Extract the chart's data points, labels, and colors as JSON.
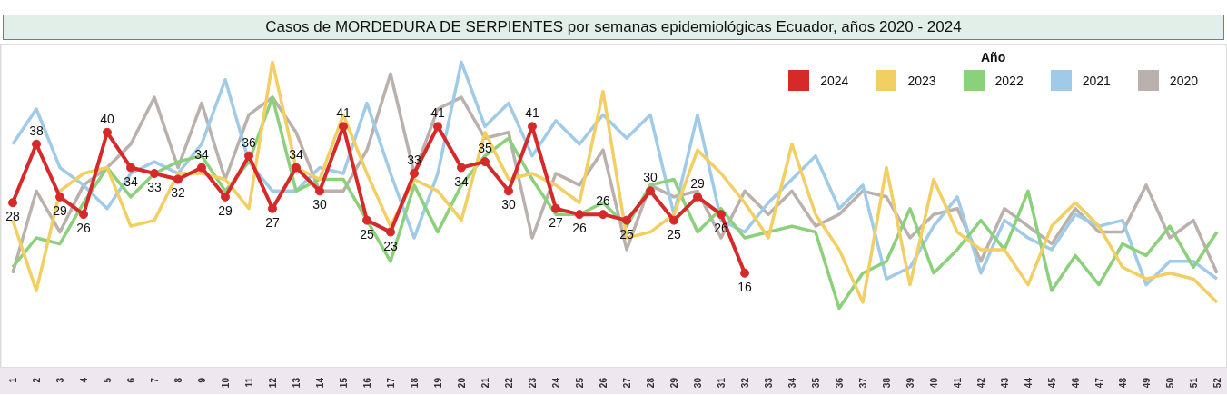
{
  "chart_data": {
    "type": "line",
    "title": "Casos de MORDEDURA DE SERPIENTES por semanas epidemiológicas Ecuador, años 2020 - 2024",
    "categories": [
      "1",
      "2",
      "3",
      "4",
      "5",
      "6",
      "7",
      "8",
      "9",
      "10",
      "11",
      "12",
      "13",
      "14",
      "15",
      "16",
      "17",
      "18",
      "19",
      "20",
      "21",
      "22",
      "23",
      "24",
      "25",
      "26",
      "27",
      "28",
      "29",
      "30",
      "31",
      "32",
      "33",
      "34",
      "35",
      "36",
      "37",
      "38",
      "39",
      "40",
      "41",
      "42",
      "43",
      "44",
      "45",
      "46",
      "47",
      "48",
      "49",
      "50",
      "51",
      "52"
    ],
    "series": [
      {
        "name": "2024",
        "color": "#d62a2a",
        "marker": "circle",
        "values": [
          28,
          38,
          29,
          26,
          40,
          34,
          33,
          32,
          34,
          29,
          36,
          27,
          34,
          30,
          41,
          25,
          23,
          33,
          41,
          34,
          35,
          30,
          41,
          27,
          26,
          26,
          25,
          30,
          25,
          29,
          26,
          16,
          null,
          null,
          null,
          null,
          null,
          null,
          null,
          null,
          null,
          null,
          null,
          null,
          null,
          null,
          null,
          null,
          null,
          null,
          null,
          null
        ],
        "value_labels": [
          "28",
          "38",
          "29",
          "26",
          "40",
          "34",
          "33",
          "32",
          "34",
          "29",
          "36",
          "27",
          "34",
          "30",
          "41",
          "25",
          "23",
          "33",
          "41",
          "34",
          "35",
          "30",
          "41",
          "27",
          "26",
          "26",
          "25",
          "30",
          "25",
          "29",
          "26",
          "16",
          null,
          null,
          null,
          null,
          null,
          null,
          null,
          null,
          null,
          null,
          null,
          null,
          null,
          null,
          null,
          null,
          null,
          null,
          null,
          null
        ]
      },
      {
        "name": "2023",
        "color": "#f2cf63",
        "marker": "none",
        "values": [
          25,
          13,
          30,
          33,
          34,
          24,
          25,
          33,
          33,
          32,
          27,
          52,
          34,
          32,
          43,
          33,
          24,
          32,
          30,
          25,
          40,
          32,
          33,
          31,
          28,
          47,
          22,
          23,
          26,
          37,
          33,
          28,
          22,
          38,
          26,
          20,
          11,
          34,
          14,
          32,
          23,
          20,
          20,
          14,
          24,
          28,
          24,
          17,
          15,
          16,
          15,
          11
        ]
      },
      {
        "name": "2022",
        "color": "#8bd17c",
        "marker": "none",
        "values": [
          17,
          22,
          21,
          28,
          34,
          29,
          33,
          35,
          36,
          30,
          35,
          46,
          30,
          32,
          32,
          25,
          18,
          31,
          23,
          31,
          36,
          39,
          32,
          26,
          26,
          28,
          24,
          31,
          32,
          23,
          27,
          22,
          23,
          24,
          23,
          10,
          16,
          18,
          27,
          16,
          20,
          25,
          20,
          30,
          13,
          19,
          14,
          21,
          19,
          24,
          17,
          23
        ]
      },
      {
        "name": "2021",
        "color": "#a0cbe8",
        "marker": "none",
        "values": [
          38,
          44,
          34,
          31,
          27,
          33,
          35,
          33,
          38,
          49,
          35,
          30,
          30,
          34,
          33,
          45,
          33,
          22,
          33,
          52,
          41,
          45,
          36,
          42,
          38,
          43,
          39,
          43,
          26,
          43,
          25,
          23,
          28,
          32,
          36,
          27,
          31,
          15,
          17,
          24,
          29,
          16,
          25,
          22,
          20,
          26,
          24,
          25,
          14,
          18,
          18,
          15
        ]
      },
      {
        "name": "2020",
        "color": "#bab0ac",
        "marker": "none",
        "values": [
          16,
          30,
          23,
          31,
          34,
          38,
          46,
          34,
          45,
          32,
          43,
          46,
          40,
          30,
          30,
          37,
          50,
          33,
          44,
          46,
          39,
          40,
          22,
          33,
          31,
          37,
          20,
          31,
          29,
          30,
          22,
          30,
          26,
          30,
          24,
          26,
          30,
          29,
          22,
          26,
          27,
          18,
          27,
          24,
          21,
          27,
          23,
          23,
          31,
          22,
          25,
          16
        ]
      }
    ],
    "ylim": [
      0,
      55
    ],
    "legend": "top right",
    "legend_title": "Año",
    "tick_labels": "x"
  }
}
